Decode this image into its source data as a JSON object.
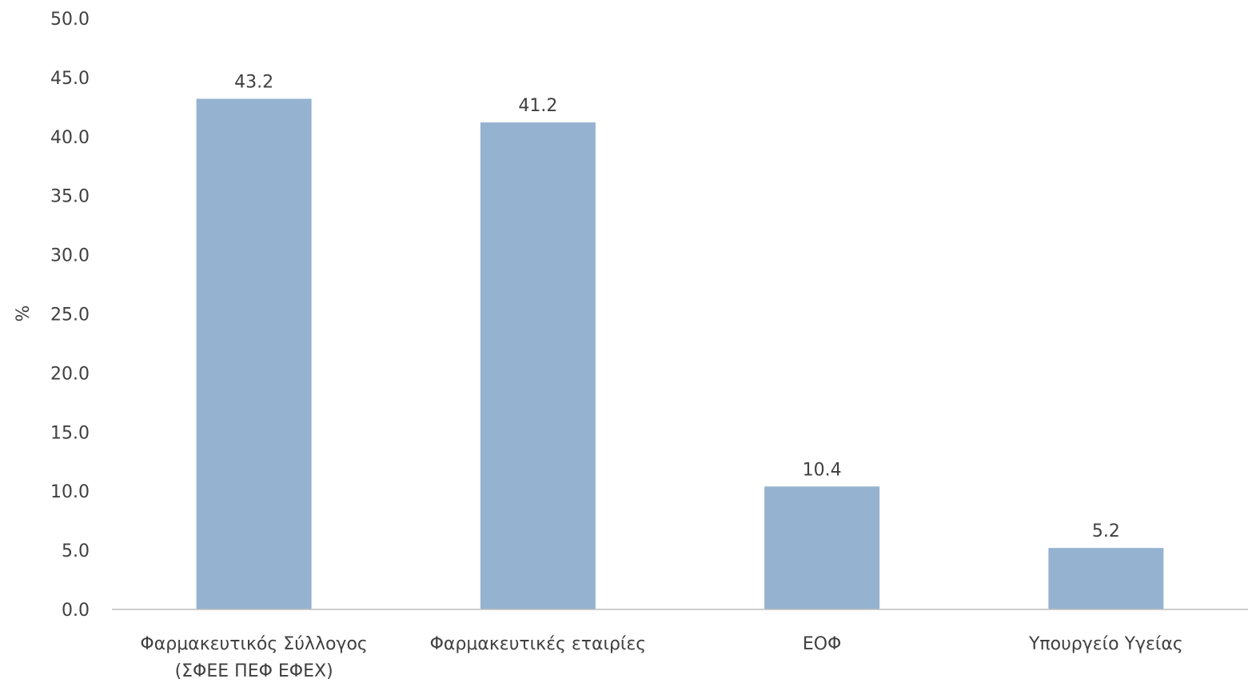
{
  "chart_data": {
    "type": "bar",
    "categories": [
      [
        "Φαρμακευτικός Σύλλογος",
        "(ΣΦΕΕ ΠΕΦ ΕΦΕΧ)"
      ],
      [
        "Φαρμακευτικές εταιρίες"
      ],
      [
        "ΕΟΦ"
      ],
      [
        "Υπουργείο Υγείας"
      ]
    ],
    "values": [
      43.2,
      41.2,
      10.4,
      5.2
    ],
    "data_labels": [
      "43.2",
      "41.2",
      "10.4",
      "5.2"
    ],
    "ylabel": "%",
    "ylim": [
      0,
      50
    ],
    "yticks": [
      "0.0",
      "5.0",
      "10.0",
      "15.0",
      "20.0",
      "25.0",
      "30.0",
      "35.0",
      "40.0",
      "45.0",
      "50.0"
    ],
    "ytick_values": [
      0,
      5,
      10,
      15,
      20,
      25,
      30,
      35,
      40,
      45,
      50
    ],
    "grid": false,
    "legend": "none",
    "bar_color": "#95B3D1",
    "axis_color": "#BFBFBF",
    "text_color": "#404040"
  }
}
